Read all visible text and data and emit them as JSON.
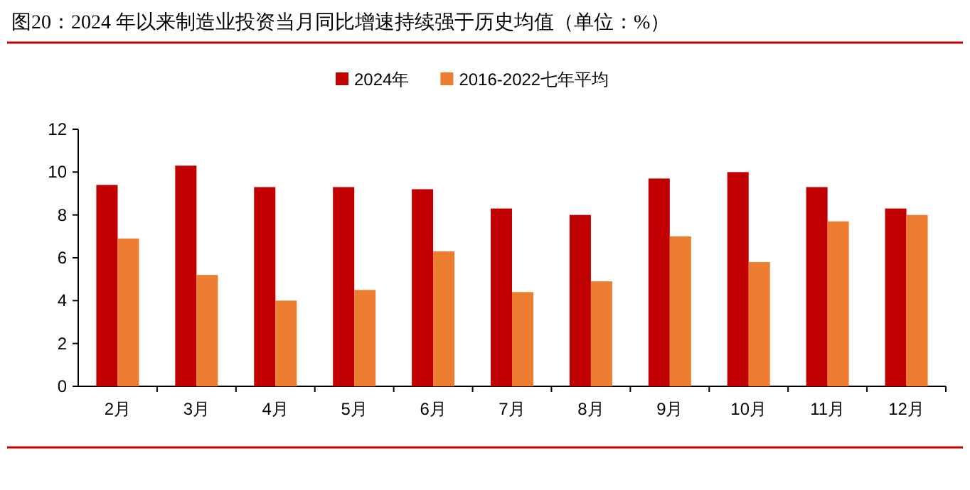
{
  "chart_data": {
    "type": "bar",
    "title": "图20：2024 年以来制造业投资当月同比增速持续强于历史均值（单位：%）",
    "legend": "top",
    "categories": [
      "2月",
      "3月",
      "4月",
      "5月",
      "6月",
      "7月",
      "8月",
      "9月",
      "10月",
      "11月",
      "12月"
    ],
    "series": [
      {
        "name": "2024年",
        "color": "#c00000",
        "values": [
          9.4,
          10.3,
          9.3,
          9.3,
          9.2,
          8.3,
          8.0,
          9.7,
          10.0,
          9.3,
          8.3
        ]
      },
      {
        "name": "2016-2022七年平均",
        "color": "#ed7d31",
        "values": [
          6.9,
          5.2,
          4.0,
          4.5,
          6.3,
          4.4,
          4.9,
          7.0,
          5.8,
          7.7,
          8.0
        ]
      }
    ],
    "ylim": [
      0,
      12
    ],
    "yticks": [
      0,
      2,
      4,
      6,
      8,
      10,
      12
    ]
  }
}
